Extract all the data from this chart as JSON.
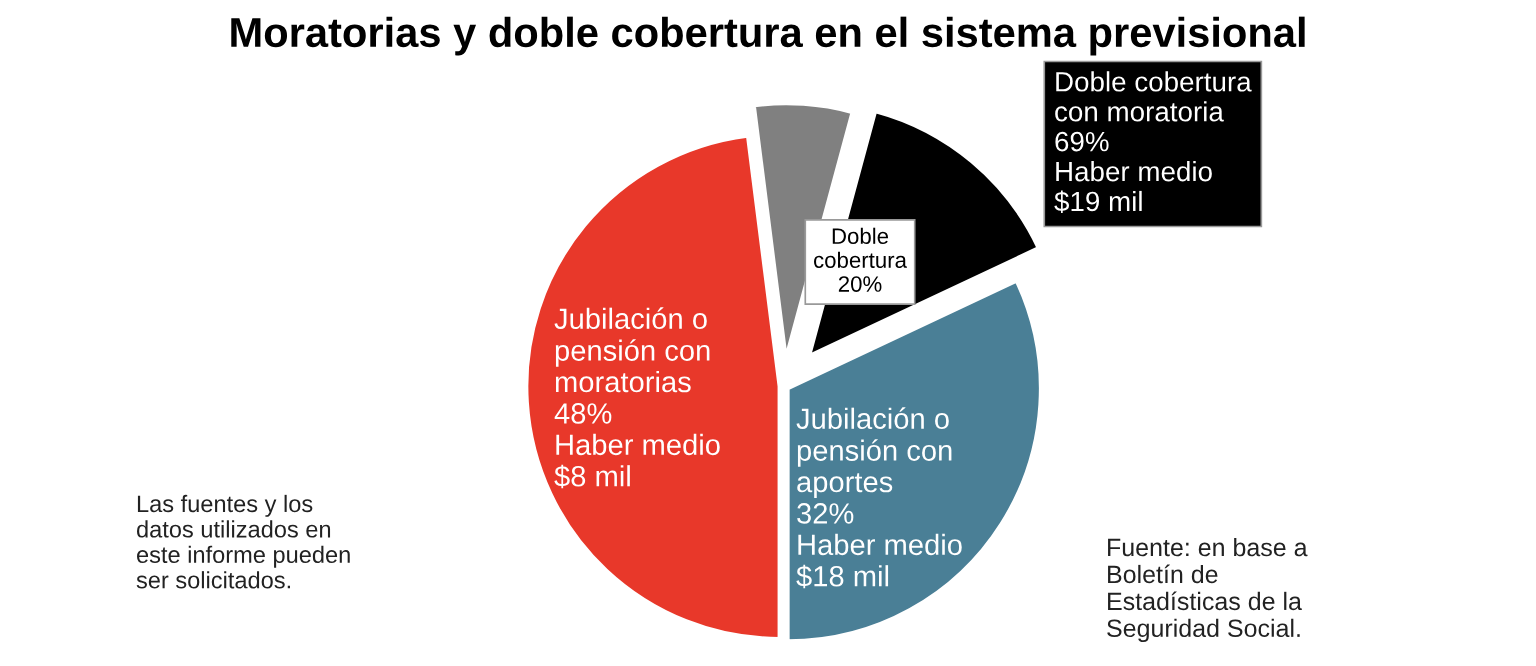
{
  "chart_data": {
    "type": "pie",
    "title": "Moratorias y doble cobertura en el sistema previsional",
    "categories": [
      null,
      null,
      null,
      null
    ],
    "values": [
      32,
      13.8,
      6.2,
      48
    ],
    "colors": [
      "#4a7f96",
      "#000000",
      "#808080",
      "#e8382a"
    ],
    "annotations": [
      "Jubilación o\npensión con\naportes\n32%\nHaber medio\n$18 mil",
      "Doble cobertura\ncon moratoria\n69%\nHaber medio\n$19 mil",
      "Doble\ncobertura\n20%",
      "Jubilación o\npensión con\nmoratorias\n48%\nHaber medio\n$8 mil",
      "Las fuentes y los\ndatos utilizados en\neste informe pueden\nser solicitados.",
      "Fuente: en base a\nBoletín de\nEstadísticas de la\nSeguridad Social."
    ]
  }
}
